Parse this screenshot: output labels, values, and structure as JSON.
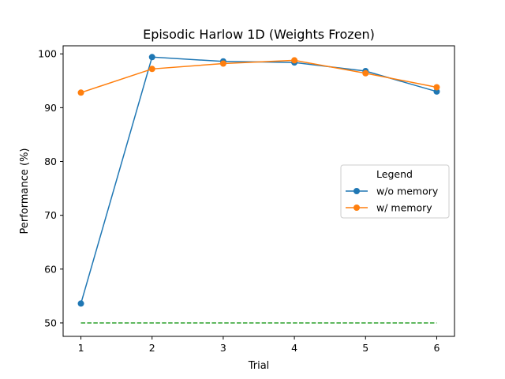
{
  "chart_data": {
    "type": "line",
    "title": "Episodic Harlow 1D (Weights Frozen)",
    "xlabel": "Trial",
    "ylabel": "Performance (%)",
    "x": [
      1,
      2,
      3,
      4,
      5,
      6
    ],
    "xlim": [
      0.75,
      6.25
    ],
    "ylim": [
      47.5,
      101.5
    ],
    "xticks": [
      "1",
      "2",
      "3",
      "4",
      "5",
      "6"
    ],
    "yticks": [
      "50",
      "60",
      "70",
      "80",
      "90",
      "100"
    ],
    "series": [
      {
        "name": "w/o memory",
        "color": "#1f77b4",
        "marker": "circle",
        "values": [
          53.6,
          99.4,
          98.6,
          98.4,
          96.8,
          93.0
        ]
      },
      {
        "name": "w/ memory",
        "color": "#ff7f0e",
        "marker": "circle",
        "values": [
          92.8,
          97.2,
          98.2,
          98.8,
          96.4,
          93.8
        ]
      }
    ],
    "reference_line": {
      "y": 50,
      "color": "#2ca02c",
      "style": "dashed",
      "x": [
        1,
        6
      ]
    },
    "legend": {
      "title": "Legend",
      "position": "center-right"
    },
    "grid": false
  }
}
